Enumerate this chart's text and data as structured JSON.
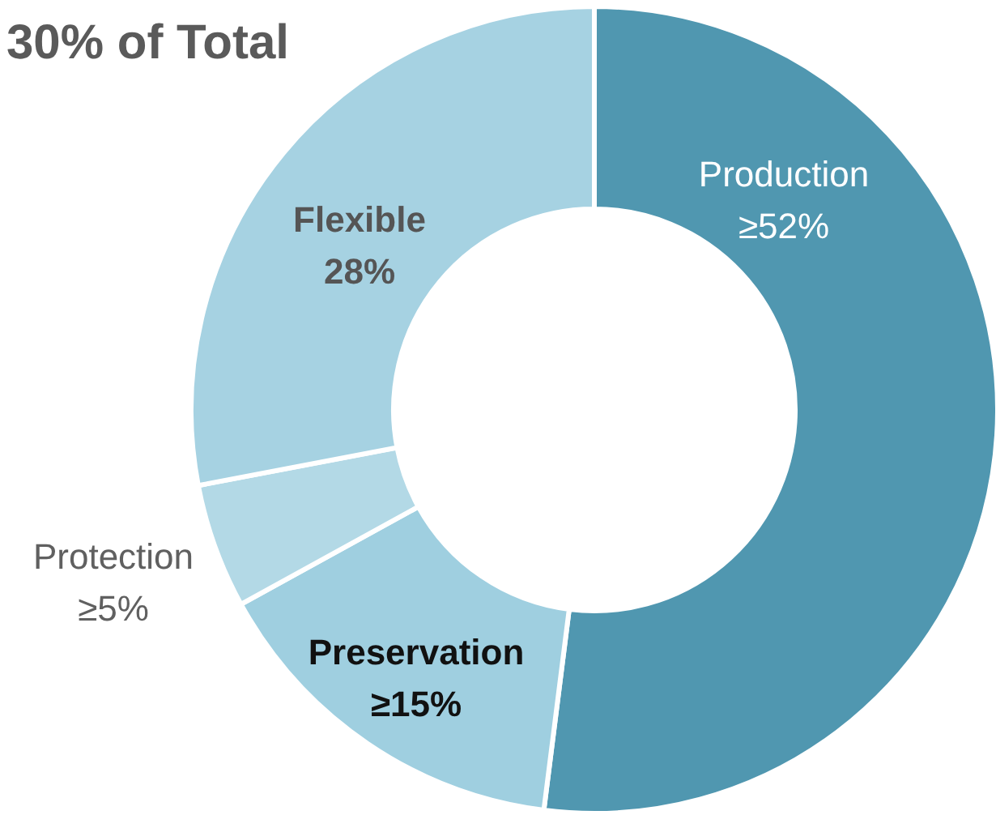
{
  "chart_data": {
    "type": "donut",
    "title": "30% of Total",
    "categories": [
      "Production",
      "Preservation",
      "Protection",
      "Flexible"
    ],
    "values": [
      52,
      15,
      5,
      28
    ],
    "value_labels": [
      "≥52%",
      "≥15%",
      "≥5%",
      "28%"
    ],
    "colors": [
      "#5097b0",
      "#9fcfe0",
      "#b3d9e6",
      "#a6d2e2"
    ]
  }
}
